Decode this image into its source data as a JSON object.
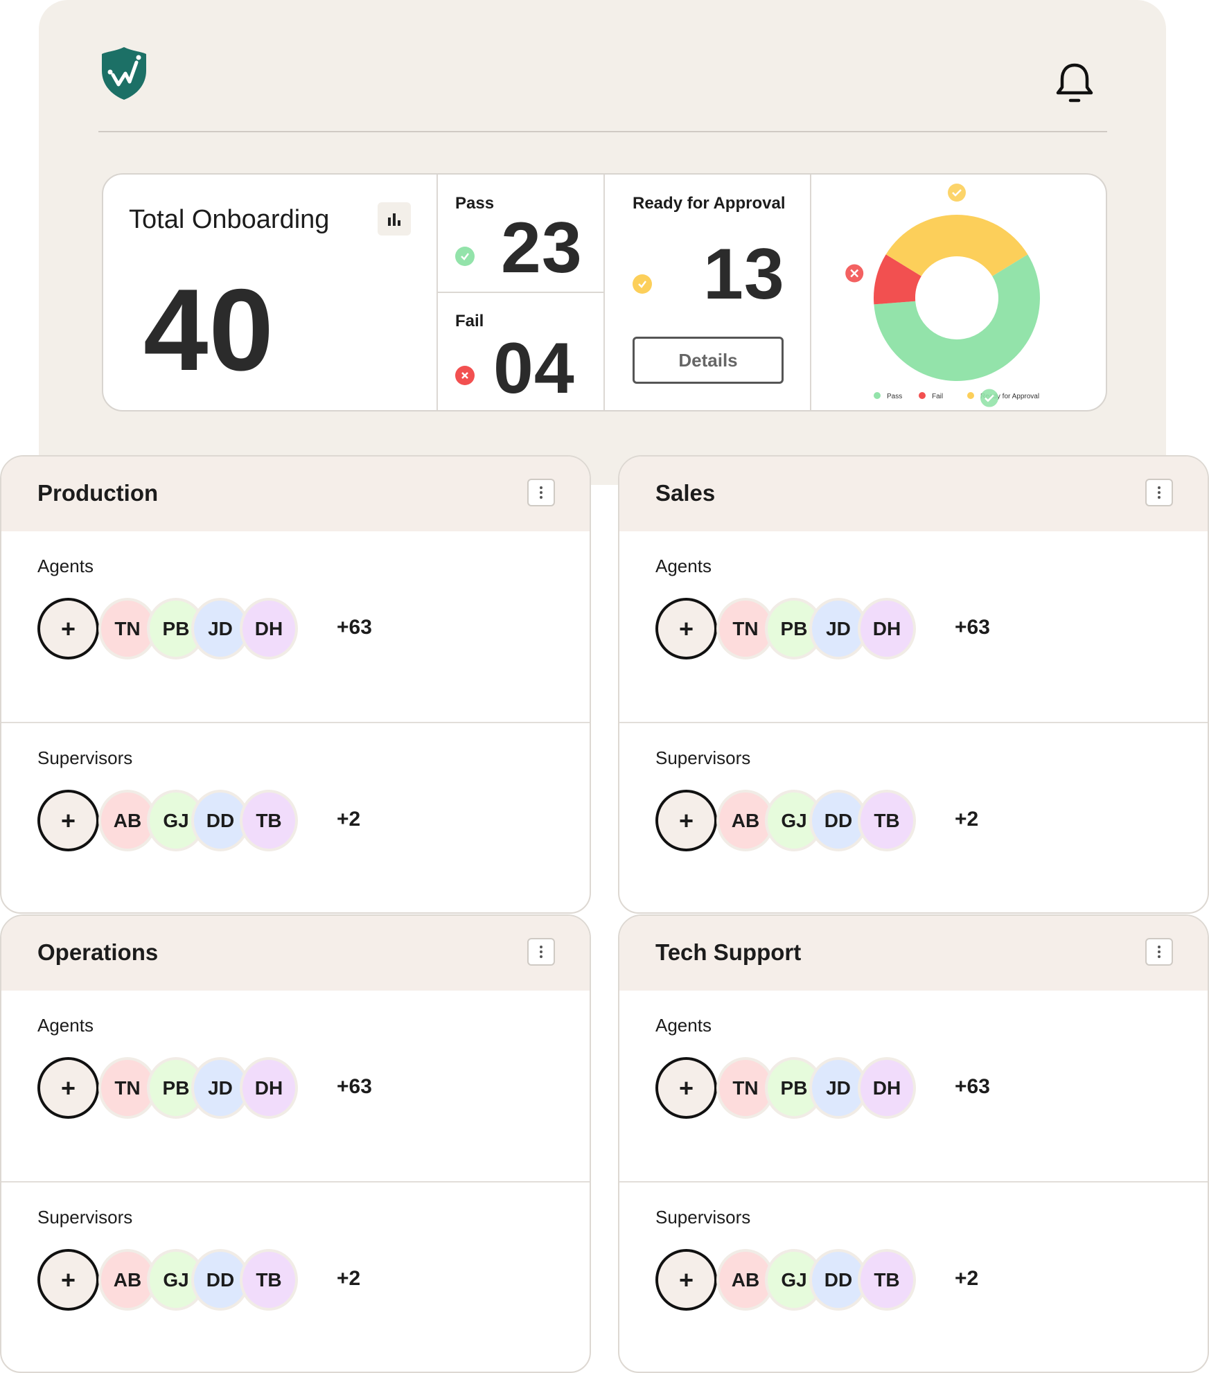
{
  "header": {
    "logo_icon": "shield-chart-logo",
    "notification_icon": "bell-icon"
  },
  "stats": {
    "total_label": "Total Onboarding",
    "total_value": "40",
    "pass_label": "Pass",
    "pass_value": "23",
    "fail_label": "Fail",
    "fail_value": "04",
    "ready_label": "Ready for Approval",
    "ready_value": "13",
    "details_label": "Details"
  },
  "colors": {
    "pass": "#93e3aa",
    "fail": "#f25050",
    "ready": "#fccf5a",
    "teal": "#1c7066"
  },
  "chart_data": {
    "type": "pie",
    "donut": true,
    "categories": [
      "Pass",
      "Fail",
      "Ready for Approval"
    ],
    "values": [
      23,
      4,
      13
    ],
    "legend": [
      "Pass",
      "Fail",
      "Ready for Approval"
    ],
    "legend_placement": "bottom"
  },
  "teams": [
    {
      "name": "Production",
      "groups": [
        {
          "label": "Agents",
          "members": [
            "TN",
            "PB",
            "JD",
            "DH"
          ],
          "more": "+63"
        },
        {
          "label": "Supervisors",
          "members": [
            "AB",
            "GJ",
            "DD",
            "TB"
          ],
          "more": "+2"
        }
      ]
    },
    {
      "name": "Sales",
      "groups": [
        {
          "label": "Agents",
          "members": [
            "TN",
            "PB",
            "JD",
            "DH"
          ],
          "more": "+63"
        },
        {
          "label": "Supervisors",
          "members": [
            "AB",
            "GJ",
            "DD",
            "TB"
          ],
          "more": "+2"
        }
      ]
    },
    {
      "name": "Operations",
      "groups": [
        {
          "label": "Agents",
          "members": [
            "TN",
            "PB",
            "JD",
            "DH"
          ],
          "more": "+63"
        },
        {
          "label": "Supervisors",
          "members": [
            "AB",
            "GJ",
            "DD",
            "TB"
          ],
          "more": "+2"
        }
      ]
    },
    {
      "name": "Tech Support",
      "groups": [
        {
          "label": "Agents",
          "members": [
            "TN",
            "PB",
            "JD",
            "DH"
          ],
          "more": "+63"
        },
        {
          "label": "Supervisors",
          "members": [
            "AB",
            "GJ",
            "DD",
            "TB"
          ],
          "more": "+2"
        }
      ]
    }
  ],
  "add_label": "+",
  "avatar_colors": [
    "#fddcdc",
    "#e6fbdc",
    "#dde8fd",
    "#f1dcfb"
  ]
}
